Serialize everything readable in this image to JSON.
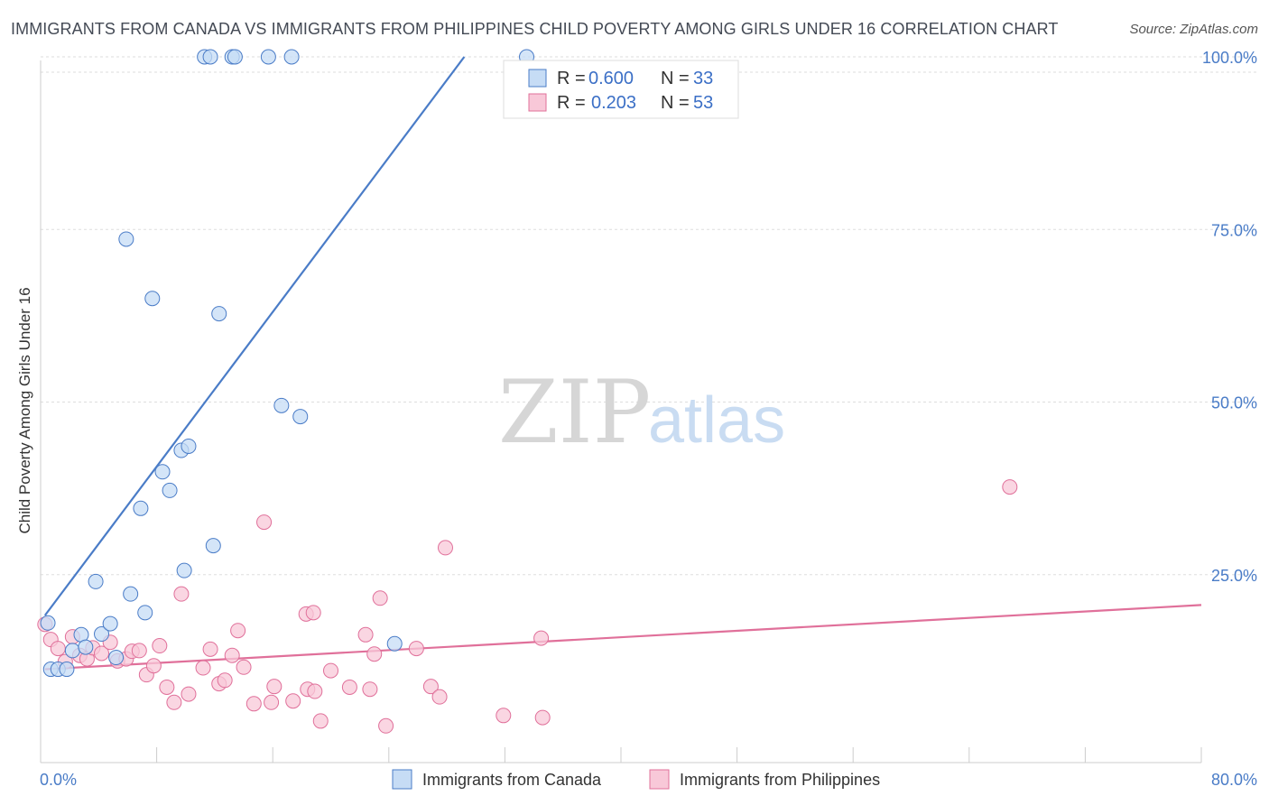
{
  "title": "IMMIGRANTS FROM CANADA VS IMMIGRANTS FROM PHILIPPINES CHILD POVERTY AMONG GIRLS UNDER 16 CORRELATION CHART",
  "source": "Source: ZipAtlas.com",
  "watermark": {
    "zip": "ZIP",
    "atlas": "atlas"
  },
  "colors": {
    "canada": "#4a7cc7",
    "canada_fill": "#c6dcf5",
    "philippines": "#e0709a",
    "philippines_fill": "#f8c8d8",
    "axis_text": "#4a7cc7",
    "grid": "#dddddd"
  },
  "legend": {
    "canada": {
      "r_label": "R = ",
      "r_value": "0.600",
      "n_label": "N = ",
      "n_value": "33"
    },
    "philippines": {
      "r_label": "R = ",
      "r_value": "0.203",
      "n_label": "N = ",
      "n_value": "53"
    }
  },
  "chart_data": {
    "type": "scatter",
    "title": "IMMIGRANTS FROM CANADA VS IMMIGRANTS FROM PHILIPPINES CHILD POVERTY AMONG GIRLS UNDER 16 CORRELATION CHART",
    "xlabel": "",
    "ylabel": "Child Poverty Among Girls Under 16",
    "xlim": [
      0,
      80
    ],
    "ylim": [
      0,
      100
    ],
    "x_tick_labels": [
      "0.0%",
      "80.0%"
    ],
    "y_ticks": [
      25,
      50,
      75,
      100
    ],
    "y_tick_labels": [
      "25.0%",
      "50.0%",
      "75.0%",
      "100.0%"
    ],
    "series": [
      {
        "name": "Immigrants from Canada",
        "trend": {
          "x": [
            0.3,
            29.2
          ],
          "y": [
            19.1,
            100
          ]
        },
        "points": [
          {
            "x": 0.7,
            "y": 11.3
          },
          {
            "x": 1.2,
            "y": 11.3
          },
          {
            "x": 1.8,
            "y": 11.3
          },
          {
            "x": 2.2,
            "y": 14.0
          },
          {
            "x": 2.8,
            "y": 16.3
          },
          {
            "x": 3.1,
            "y": 14.5
          },
          {
            "x": 3.8,
            "y": 24.0
          },
          {
            "x": 4.2,
            "y": 16.4
          },
          {
            "x": 4.8,
            "y": 17.9
          },
          {
            "x": 5.2,
            "y": 13.0
          },
          {
            "x": 5.9,
            "y": 73.6
          },
          {
            "x": 6.2,
            "y": 22.2
          },
          {
            "x": 6.9,
            "y": 34.6
          },
          {
            "x": 7.2,
            "y": 19.5
          },
          {
            "x": 7.7,
            "y": 65.0
          },
          {
            "x": 8.4,
            "y": 39.9
          },
          {
            "x": 8.9,
            "y": 37.2
          },
          {
            "x": 9.7,
            "y": 43.0
          },
          {
            "x": 9.9,
            "y": 25.6
          },
          {
            "x": 10.2,
            "y": 43.6
          },
          {
            "x": 11.3,
            "y": 100.0
          },
          {
            "x": 11.7,
            "y": 100.0
          },
          {
            "x": 11.9,
            "y": 29.2
          },
          {
            "x": 12.3,
            "y": 62.8
          },
          {
            "x": 13.2,
            "y": 100.0
          },
          {
            "x": 13.4,
            "y": 100.0
          },
          {
            "x": 15.7,
            "y": 100.0
          },
          {
            "x": 16.6,
            "y": 49.5
          },
          {
            "x": 17.3,
            "y": 100.0
          },
          {
            "x": 17.9,
            "y": 47.9
          },
          {
            "x": 24.4,
            "y": 15.0
          },
          {
            "x": 33.5,
            "y": 100.0
          },
          {
            "x": 0.5,
            "y": 18.0
          }
        ]
      },
      {
        "name": "Immigrants from Philippines",
        "trend": {
          "x": [
            0.3,
            80.0
          ],
          "y": [
            11.3,
            20.6
          ]
        },
        "points": [
          {
            "x": 0.3,
            "y": 17.8
          },
          {
            "x": 0.7,
            "y": 15.6
          },
          {
            "x": 1.2,
            "y": 14.3
          },
          {
            "x": 1.7,
            "y": 12.4
          },
          {
            "x": 2.2,
            "y": 16.0
          },
          {
            "x": 2.7,
            "y": 13.3
          },
          {
            "x": 3.2,
            "y": 12.8
          },
          {
            "x": 3.6,
            "y": 14.4
          },
          {
            "x": 4.2,
            "y": 13.6
          },
          {
            "x": 4.8,
            "y": 15.2
          },
          {
            "x": 5.3,
            "y": 12.5
          },
          {
            "x": 5.9,
            "y": 12.8
          },
          {
            "x": 6.3,
            "y": 13.9
          },
          {
            "x": 6.8,
            "y": 14.0
          },
          {
            "x": 7.3,
            "y": 10.5
          },
          {
            "x": 7.8,
            "y": 11.8
          },
          {
            "x": 8.2,
            "y": 14.7
          },
          {
            "x": 8.7,
            "y": 8.7
          },
          {
            "x": 9.2,
            "y": 6.5
          },
          {
            "x": 9.7,
            "y": 22.2
          },
          {
            "x": 10.2,
            "y": 7.7
          },
          {
            "x": 11.2,
            "y": 11.5
          },
          {
            "x": 11.7,
            "y": 14.2
          },
          {
            "x": 12.3,
            "y": 9.2
          },
          {
            "x": 12.7,
            "y": 9.7
          },
          {
            "x": 13.2,
            "y": 13.3
          },
          {
            "x": 13.6,
            "y": 16.9
          },
          {
            "x": 14.0,
            "y": 11.6
          },
          {
            "x": 14.7,
            "y": 6.3
          },
          {
            "x": 15.4,
            "y": 32.6
          },
          {
            "x": 15.9,
            "y": 6.5
          },
          {
            "x": 16.1,
            "y": 8.8
          },
          {
            "x": 17.4,
            "y": 6.7
          },
          {
            "x": 18.3,
            "y": 19.3
          },
          {
            "x": 18.8,
            "y": 19.5
          },
          {
            "x": 18.4,
            "y": 8.4
          },
          {
            "x": 18.9,
            "y": 8.1
          },
          {
            "x": 19.3,
            "y": 3.8
          },
          {
            "x": 20.0,
            "y": 11.1
          },
          {
            "x": 21.3,
            "y": 8.7
          },
          {
            "x": 22.7,
            "y": 8.4
          },
          {
            "x": 23.4,
            "y": 21.6
          },
          {
            "x": 23.0,
            "y": 13.5
          },
          {
            "x": 23.8,
            "y": 3.1
          },
          {
            "x": 25.9,
            "y": 14.3
          },
          {
            "x": 26.9,
            "y": 8.8
          },
          {
            "x": 27.5,
            "y": 7.3
          },
          {
            "x": 27.9,
            "y": 28.9
          },
          {
            "x": 31.9,
            "y": 4.6
          },
          {
            "x": 34.6,
            "y": 4.3
          },
          {
            "x": 34.5,
            "y": 15.8
          },
          {
            "x": 66.8,
            "y": 37.7
          },
          {
            "x": 22.4,
            "y": 16.3
          }
        ]
      }
    ]
  },
  "bottom_legend": {
    "canada": "Immigrants from Canada",
    "philippines": "Immigrants from Philippines"
  }
}
